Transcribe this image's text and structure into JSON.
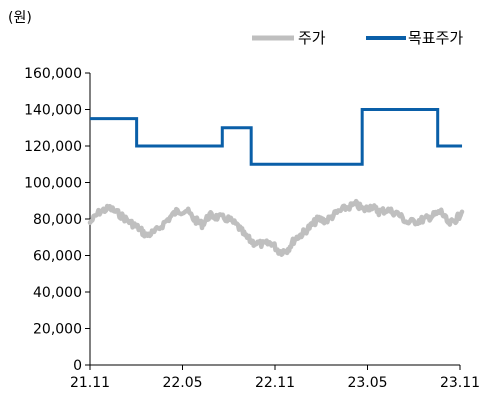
{
  "chart_data": {
    "type": "line",
    "unit_label": "(원)",
    "ylim": [
      0,
      160000
    ],
    "yticks": [
      "0",
      "20,000",
      "40,000",
      "60,000",
      "80,000",
      "100,000",
      "120,000",
      "140,000",
      "160,000"
    ],
    "xticks": [
      "21.11",
      "22.05",
      "22.11",
      "23.05",
      "23.11"
    ],
    "xlim": [
      "2021-11",
      "2023-11"
    ],
    "legend_position": "top-right",
    "series": [
      {
        "name": "주가",
        "color": "#bfbfbf",
        "style": "thick-noisy-line",
        "x": [
          "2021-11-01",
          "2021-11-20",
          "2021-12-10",
          "2022-01-01",
          "2022-01-20",
          "2022-02-05",
          "2022-02-20",
          "2022-03-10",
          "2022-04-01",
          "2022-04-20",
          "2022-05-10",
          "2022-05-25",
          "2022-06-10",
          "2022-06-25",
          "2022-07-10",
          "2022-08-01",
          "2022-08-20",
          "2022-09-05",
          "2022-09-20",
          "2022-10-10",
          "2022-10-25",
          "2022-11-10",
          "2022-11-25",
          "2022-12-10",
          "2022-12-25",
          "2023-01-10",
          "2023-01-25",
          "2023-02-10",
          "2023-03-01",
          "2023-03-20",
          "2023-04-10",
          "2023-04-25",
          "2023-05-10",
          "2023-05-25",
          "2023-06-10",
          "2023-07-01",
          "2023-07-20",
          "2023-08-10",
          "2023-08-25",
          "2023-09-10",
          "2023-09-25",
          "2023-10-10",
          "2023-10-25",
          "2023-11-05"
        ],
        "y": [
          78000,
          84000,
          86000,
          82000,
          78000,
          75000,
          71000,
          73000,
          79000,
          84000,
          85000,
          80000,
          77000,
          82000,
          81000,
          80000,
          76000,
          70000,
          67000,
          66000,
          67000,
          62000,
          63000,
          69000,
          72000,
          76000,
          80000,
          79000,
          83000,
          86000,
          88000,
          85000,
          87000,
          84000,
          85000,
          83000,
          78000,
          79000,
          80000,
          82000,
          84000,
          77000,
          80000,
          84000
        ]
      },
      {
        "name": "목표주가",
        "color": "#0a5fa8",
        "style": "step",
        "x": [
          "2021-11-01",
          "2022-02-01",
          "2022-05-20",
          "2022-07-20",
          "2022-09-15",
          "2022-12-15",
          "2023-04-22",
          "2023-09-18",
          "2023-11-05"
        ],
        "y": [
          135000,
          120000,
          120000,
          130000,
          110000,
          110000,
          140000,
          120000,
          120000
        ]
      }
    ]
  }
}
